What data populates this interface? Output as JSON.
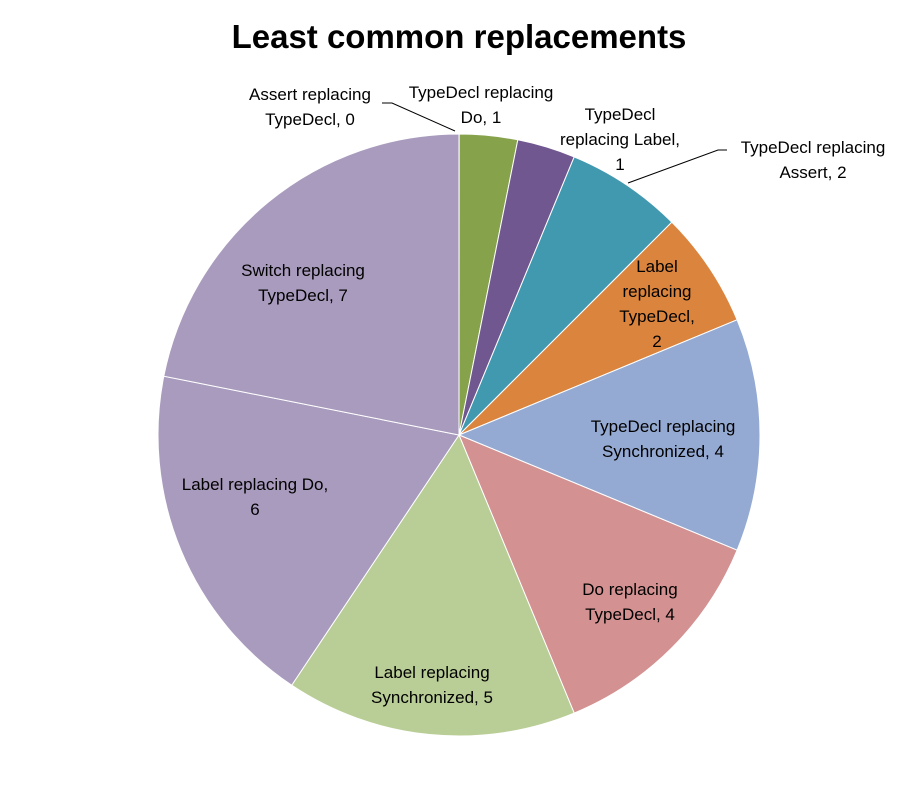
{
  "chart_data": {
    "type": "pie",
    "title": "Least common replacements",
    "categories": [
      "Assert replacing TypeDecl",
      "TypeDecl replacing Do",
      "TypeDecl replacing Label",
      "TypeDecl replacing Assert",
      "Label replacing TypeDecl",
      "TypeDecl replacing Synchronized",
      "Do replacing TypeDecl",
      "Label replacing Synchronized",
      "Label replacing Do",
      "Switch replacing TypeDecl"
    ],
    "values": [
      0,
      1,
      1,
      2,
      2,
      4,
      4,
      5,
      6,
      7
    ],
    "colors": [
      "#A84A48",
      "#86A34C",
      "#70578F",
      "#4199B0",
      "#DB843D",
      "#95AAD3",
      "#D39191",
      "#B9CD96",
      "#A99BBD",
      "#A99BBD"
    ],
    "labels": [
      [
        "Assert replacing",
        "TypeDecl, 0"
      ],
      [
        "TypeDecl replacing",
        "Do, 1"
      ],
      [
        "TypeDecl",
        "replacing Label,",
        "1"
      ],
      [
        "TypeDecl replacing",
        "Assert, 2"
      ],
      [
        "Label",
        "replacing",
        "TypeDecl,",
        "2"
      ],
      [
        "TypeDecl replacing",
        "Synchronized, 4"
      ],
      [
        "Do replacing",
        "TypeDecl, 4"
      ],
      [
        "Label replacing",
        "Synchronized, 5"
      ],
      [
        "Label replacing Do,",
        "6"
      ],
      [
        "Switch replacing",
        "TypeDecl, 7"
      ]
    ],
    "legend": "none"
  }
}
